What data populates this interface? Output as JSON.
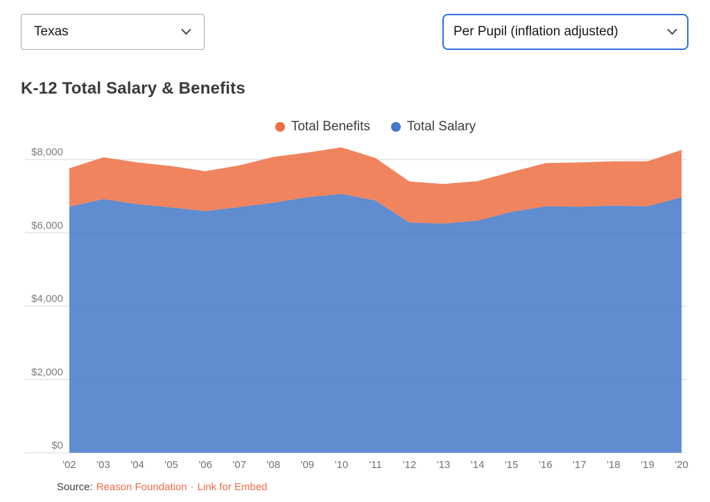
{
  "controls": {
    "state_select": {
      "value": "Texas"
    },
    "metric_select": {
      "value": "Per Pupil (inflation adjusted)",
      "focus_border_color": "#2f6ce0"
    }
  },
  "title": "K-12 Total Salary & Benefits",
  "legend": {
    "items": [
      {
        "label": "Total Benefits",
        "color": "#ed6f42"
      },
      {
        "label": "Total Salary",
        "color": "#4478c8"
      }
    ]
  },
  "source": {
    "prefix": "Source:",
    "link1": "Reason Foundation",
    "separator": "·",
    "link2": "Link for Embed",
    "link_color": "#f26b45"
  },
  "chart_data": {
    "type": "area",
    "stacked": true,
    "title": "K-12 Total Salary & Benefits",
    "x": [
      "'02",
      "'03",
      "'04",
      "'05",
      "'06",
      "'07",
      "'08",
      "'09",
      "'10",
      "'11",
      "'12",
      "'13",
      "'14",
      "'15",
      "'16",
      "'17",
      "'18",
      "'19",
      "'20"
    ],
    "series": [
      {
        "name": "Total Salary",
        "color": "#4478c8",
        "values": [
          6710,
          6920,
          6780,
          6690,
          6590,
          6700,
          6820,
          6970,
          7060,
          6880,
          6280,
          6250,
          6330,
          6570,
          6720,
          6710,
          6740,
          6720,
          6970
        ]
      },
      {
        "name": "Total Benefits",
        "color": "#ed6f42",
        "values": [
          1050,
          1140,
          1140,
          1130,
          1090,
          1140,
          1250,
          1220,
          1270,
          1160,
          1120,
          1080,
          1080,
          1090,
          1180,
          1210,
          1210,
          1230,
          1290
        ]
      }
    ],
    "totals_salary_plus_benefits": [
      7760,
      8060,
      7920,
      7820,
      7680,
      7840,
      8070,
      8190,
      8330,
      8040,
      7400,
      7330,
      7410,
      7660,
      7900,
      7920,
      7950,
      7950,
      8260
    ],
    "xlabel": "",
    "ylabel": "",
    "yticks": [
      {
        "value": 0,
        "label": "$0"
      },
      {
        "value": 2000,
        "label": "$2,000"
      },
      {
        "value": 4000,
        "label": "$4,000"
      },
      {
        "value": 6000,
        "label": "$6,000"
      },
      {
        "value": 8000,
        "label": "$8,000"
      }
    ],
    "ylim": [
      0,
      8500
    ],
    "grid": "horizontal",
    "grid_color": "#d8d8d8",
    "legend_position": "top-center",
    "fill_opacity": 0.85
  }
}
